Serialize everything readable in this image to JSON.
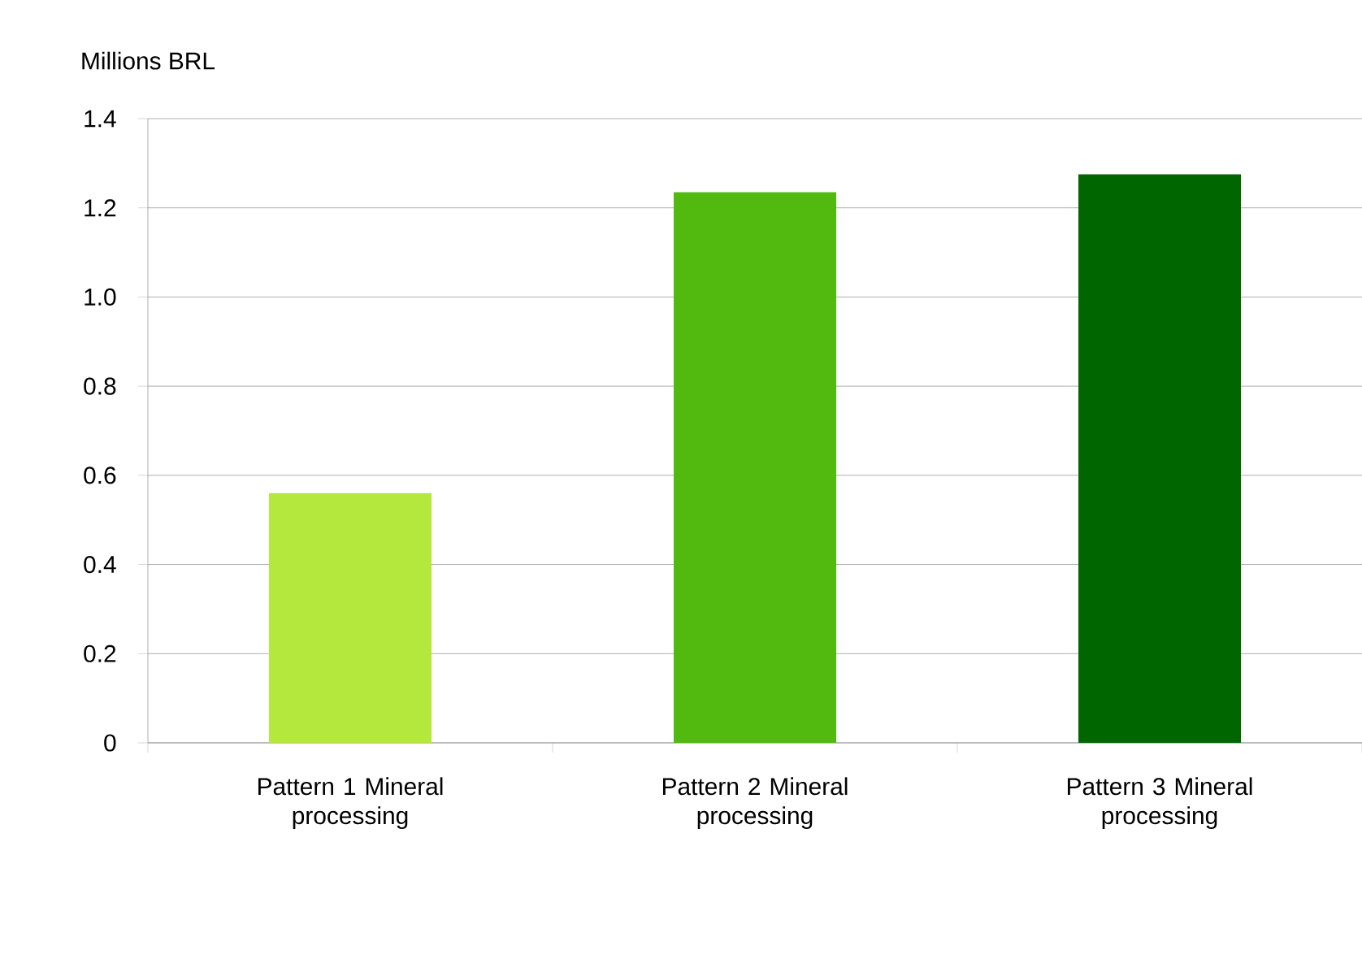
{
  "chart_data": {
    "type": "bar",
    "ylabel": "Millions BRL",
    "categories": [
      "Pattern 1 Mineral processing",
      "Pattern 2 Mineral processing",
      "Pattern 3 Mineral processing"
    ],
    "values": [
      0.56,
      1.235,
      1.275
    ],
    "colors": [
      "#b5e83c",
      "#52b90e",
      "#006600"
    ],
    "ylim": [
      0,
      1.4
    ],
    "yticks": [
      0,
      0.2,
      0.4,
      0.6,
      0.8,
      {
        "value": 1.0,
        "label": "1.0"
      },
      1.2,
      1.4
    ],
    "grid": "y"
  }
}
